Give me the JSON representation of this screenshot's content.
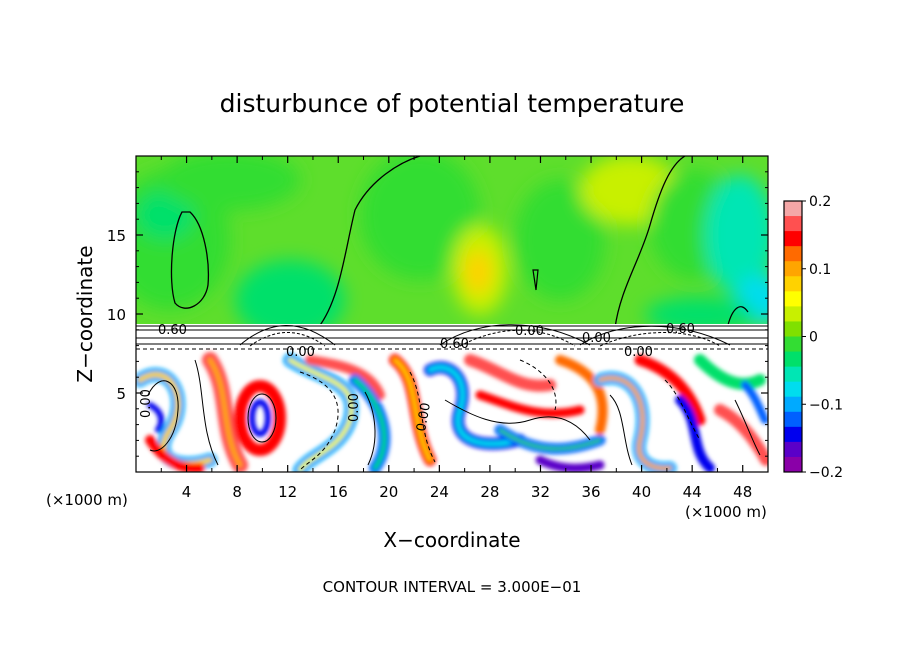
{
  "chart_data": {
    "type": "heatmap",
    "title": "disturbunce of potential temperature",
    "xlabel": "X−coordinate",
    "ylabel": "Z−coordinate",
    "x_unit_left": "(×1000 m)",
    "x_unit_right": "(×1000 m)",
    "xlim": [
      0,
      50
    ],
    "ylim": [
      0,
      20
    ],
    "x_ticks": [
      "4",
      "8",
      "12",
      "16",
      "20",
      "24",
      "28",
      "32",
      "36",
      "40",
      "44",
      "48"
    ],
    "y_ticks": [
      "5",
      "10",
      "15"
    ],
    "colorbar": {
      "range": [
        -0.2,
        0.2
      ],
      "tick_labels": [
        "0.2",
        "0.1",
        "0",
        "−0.1",
        "−0.2"
      ],
      "colors": [
        "#f4a7a7",
        "#ff5050",
        "#ff0000",
        "#ff6a00",
        "#ffa500",
        "#ffd200",
        "#ffff00",
        "#c8f000",
        "#80e000",
        "#33dd33",
        "#00e06a",
        "#00e6b4",
        "#00ddee",
        "#00aaff",
        "#0060ff",
        "#0000ee",
        "#5a00c8",
        "#8a00a8"
      ]
    },
    "contour_labels": [
      "0.60",
      "0.00",
      "0.00",
      "0.00",
      "0.00",
      "0.00",
      "0.60",
      "0.00",
      "0.60",
      "0.00"
    ],
    "contour_interval_text": "CONTOUR INTERVAL = 3.000E−01"
  }
}
